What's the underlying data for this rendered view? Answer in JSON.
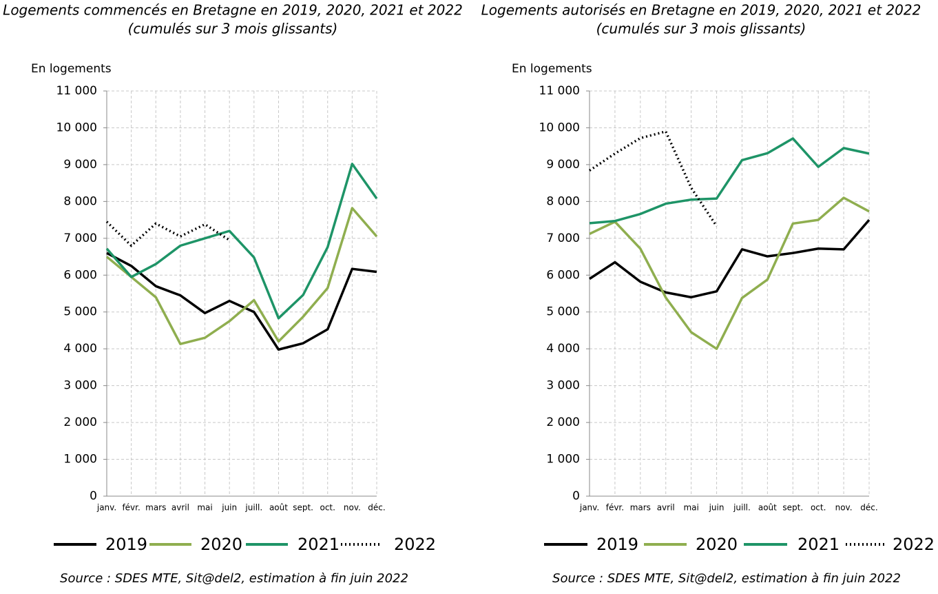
{
  "chart_data": [
    {
      "type": "line",
      "title": "Logements commencés en Bretagne en 2019, 2020, 2021 et 2022",
      "subtitle": "(cumulés sur 3 mois glissants)",
      "y_label": "En logements",
      "source": "Source : SDES MTE, Sit@del2, estimation à fin juin 2022",
      "categories": [
        "janv.",
        "févr.",
        "mars",
        "avril",
        "mai",
        "juin",
        "juill.",
        "août",
        "sept.",
        "oct.",
        "nov.",
        "déc."
      ],
      "ylim": [
        0,
        11000
      ],
      "yticks": [
        0,
        {
          "value": 1000,
          "label": "1 000"
        },
        {
          "value": 2000,
          "label": "2 000"
        },
        {
          "value": 3000,
          "label": "3 000"
        },
        {
          "value": 4000,
          "label": "4 000"
        },
        {
          "value": 5000,
          "label": "5 000"
        },
        {
          "value": 6000,
          "label": "6 000"
        },
        {
          "value": 7000,
          "label": "7 000"
        },
        {
          "value": 8000,
          "label": "8 000"
        },
        {
          "value": 9000,
          "label": "9 000"
        },
        {
          "value": 10000,
          "label": "10 000"
        },
        {
          "value": 11000,
          "label": "11 000"
        }
      ],
      "grid": true,
      "series": [
        {
          "name": "2019",
          "color": "#000000",
          "values": [
            6600,
            6250,
            5700,
            5450,
            4970,
            5300,
            5000,
            3980,
            4150,
            4530,
            6170,
            6090
          ]
        },
        {
          "name": "2020",
          "color": "#8fae4f",
          "values": [
            6500,
            5950,
            5400,
            4130,
            4300,
            4750,
            5320,
            4200,
            4870,
            5650,
            7820,
            7050
          ]
        },
        {
          "name": "2021",
          "color": "#1e9467",
          "values": [
            6720,
            5950,
            6300,
            6800,
            7000,
            7200,
            6480,
            4830,
            5460,
            6760,
            9020,
            8080
          ]
        },
        {
          "name": "2022",
          "color": "#000000",
          "dash": "dotted",
          "values": [
            7450,
            6800,
            7400,
            7050,
            7380,
            6950,
            null,
            null,
            null,
            null,
            null,
            null
          ]
        }
      ]
    },
    {
      "type": "line",
      "title": "Logements autorisés en Bretagne en 2019, 2020, 2021 et 2022",
      "subtitle": "(cumulés sur 3 mois glissants)",
      "y_label": "En logements",
      "source": "Source : SDES MTE, Sit@del2, estimation à fin juin 2022",
      "categories": [
        "janv.",
        "févr.",
        "mars",
        "avril",
        "mai",
        "juin",
        "juill.",
        "août",
        "sept.",
        "oct.",
        "nov.",
        "déc."
      ],
      "ylim": [
        0,
        11000
      ],
      "yticks": [
        0,
        {
          "value": 1000,
          "label": "1 000"
        },
        {
          "value": 2000,
          "label": "2 000"
        },
        {
          "value": 3000,
          "label": "3 000"
        },
        {
          "value": 4000,
          "label": "4 000"
        },
        {
          "value": 5000,
          "label": "5 000"
        },
        {
          "value": 6000,
          "label": "6 000"
        },
        {
          "value": 7000,
          "label": "7 000"
        },
        {
          "value": 8000,
          "label": "8 000"
        },
        {
          "value": 9000,
          "label": "9 000"
        },
        {
          "value": 10000,
          "label": "10 000"
        },
        {
          "value": 11000,
          "label": "11 000"
        }
      ],
      "grid": true,
      "series": [
        {
          "name": "2019",
          "color": "#000000",
          "values": [
            5900,
            6350,
            5820,
            5530,
            5400,
            5560,
            6700,
            6510,
            6600,
            6720,
            6700,
            7500
          ]
        },
        {
          "name": "2020",
          "color": "#8fae4f",
          "values": [
            7120,
            7450,
            6720,
            5390,
            4450,
            4000,
            5380,
            5880,
            7400,
            7500,
            8100,
            7730
          ]
        },
        {
          "name": "2021",
          "color": "#1e9467",
          "values": [
            7410,
            7470,
            7660,
            7940,
            8050,
            8080,
            9120,
            9310,
            9710,
            8940,
            9450,
            9300
          ]
        },
        {
          "name": "2022",
          "color": "#000000",
          "dash": "dotted",
          "values": [
            8840,
            9300,
            9720,
            9900,
            8370,
            7330,
            null,
            null,
            null,
            null,
            null,
            null
          ]
        }
      ]
    }
  ]
}
